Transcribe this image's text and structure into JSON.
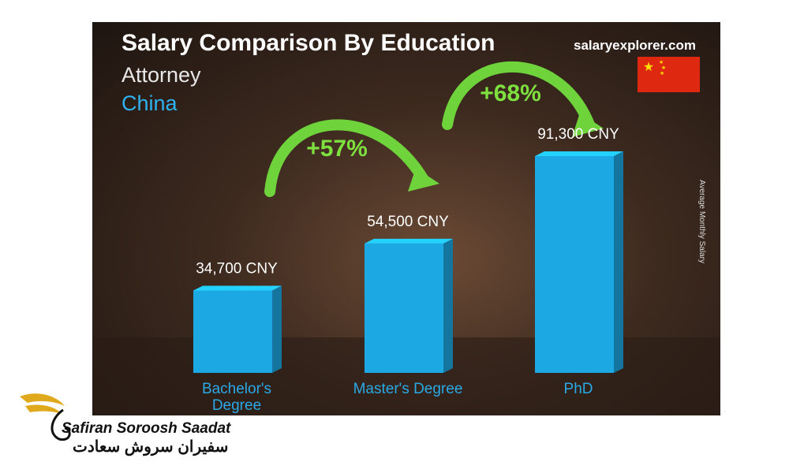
{
  "chart_data": {
    "type": "bar",
    "title": "Salary Comparison By Education",
    "subtitle": "Attorney",
    "country": "China",
    "source": "salaryexplorer.com",
    "side_label": "Average Monthly Salary",
    "categories": [
      "Bachelor's Degree",
      "Master's Degree",
      "PhD"
    ],
    "values": [
      34700,
      54500,
      91300
    ],
    "value_labels": [
      "34,700 CNY",
      "54,500 CNY",
      "91,300 CNY"
    ],
    "color": "#1ca8e3",
    "annotations": [
      "+57%",
      "+68%"
    ]
  },
  "logo": {
    "name": "Safiran Soroosh Saadat",
    "name_fa": "سفیران سروش سعادت"
  }
}
